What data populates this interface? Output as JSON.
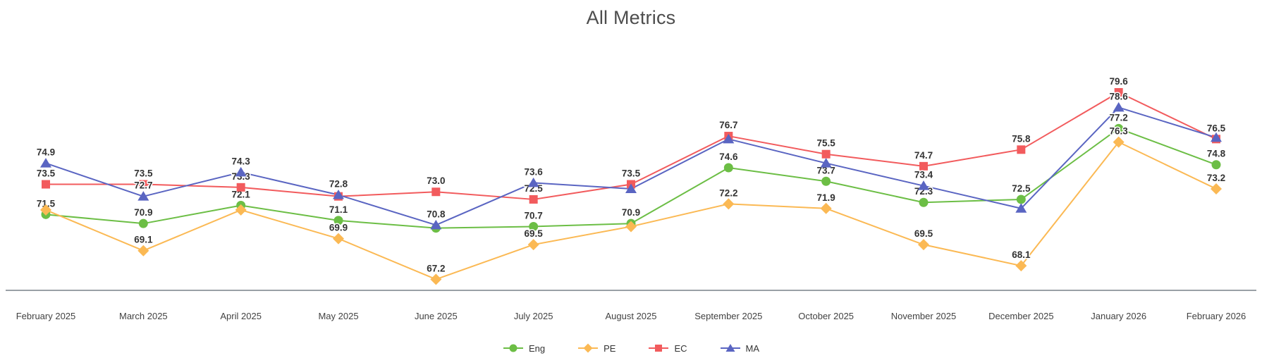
{
  "chart_data": {
    "type": "line",
    "title": "All Metrics",
    "categories": [
      "February 2025",
      "March 2025",
      "April 2025",
      "May 2025",
      "June 2025",
      "July 2025",
      "August 2025",
      "September 2025",
      "October 2025",
      "November 2025",
      "December 2025",
      "January 2026",
      "February 2026"
    ],
    "y_axis": {
      "visible": false,
      "approx_range": [
        66,
        81
      ]
    },
    "x_axis": {
      "line_color": "#9aa0a6",
      "label_color": "#424242"
    },
    "legend_position": "bottom-center",
    "grid": false,
    "label_color": "#333333",
    "series": [
      {
        "name": "Eng",
        "marker": "circle",
        "color": "#6cbe45",
        "values": [
          71.5,
          70.9,
          72.1,
          71.1,
          70.6,
          70.7,
          70.9,
          74.6,
          73.7,
          72.3,
          72.5,
          77.2,
          74.8
        ],
        "labels": [
          "71.5",
          "70.9",
          "72.1",
          "71.1",
          null,
          "70.7",
          "70.9",
          "74.6",
          "73.7",
          "72.3",
          "72.5",
          "77.2",
          "74.8"
        ]
      },
      {
        "name": "PE",
        "marker": "diamond",
        "color": "#fbb954",
        "values": [
          71.8,
          69.1,
          71.8,
          69.9,
          67.2,
          69.5,
          70.7,
          72.2,
          71.9,
          69.5,
          68.1,
          76.3,
          73.2
        ],
        "labels": [
          null,
          "69.1",
          null,
          "69.9",
          "67.2",
          "69.5",
          null,
          "72.2",
          "71.9",
          "69.5",
          "68.1",
          "76.3",
          "73.2"
        ]
      },
      {
        "name": "EC",
        "marker": "square",
        "color": "#f25b5d",
        "values": [
          73.5,
          73.5,
          73.3,
          72.7,
          73.0,
          72.5,
          73.5,
          76.7,
          75.5,
          74.7,
          75.8,
          79.6,
          76.5
        ],
        "labels": [
          "73.5",
          "73.5",
          "73.3",
          null,
          "73.0",
          "72.5",
          "73.5",
          "76.7",
          "75.5",
          "74.7",
          "75.8",
          "79.6",
          "76.5"
        ]
      },
      {
        "name": "MA",
        "marker": "triangle",
        "color": "#5a65c2",
        "values": [
          74.9,
          72.7,
          74.3,
          72.8,
          70.8,
          73.6,
          73.2,
          76.5,
          74.9,
          73.4,
          71.9,
          78.6,
          76.6
        ],
        "labels": [
          "74.9",
          "72.7",
          "74.3",
          "72.8",
          "70.8",
          "73.6",
          null,
          null,
          null,
          "73.4",
          null,
          "78.6",
          null
        ]
      }
    ]
  }
}
